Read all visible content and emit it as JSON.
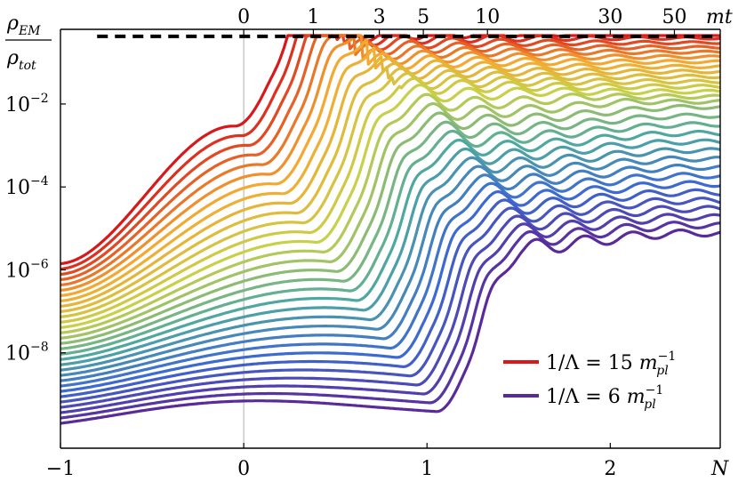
{
  "chart_data": {
    "type": "line",
    "title": "",
    "ylabel_num": "ρ",
    "ylabel_num_sub": "EM",
    "ylabel_den": "ρ",
    "ylabel_den_sub": "tot",
    "xlabel": "N",
    "top_axis_label": "mt",
    "x_range": [
      -1,
      2.6
    ],
    "y_log_range": [
      -10.3,
      -0.2
    ],
    "bottom_ticks": [
      {
        "value": -1,
        "label": "−1"
      },
      {
        "value": 0,
        "label": "0"
      },
      {
        "value": 1,
        "label": "1"
      },
      {
        "value": 2,
        "label": "2"
      }
    ],
    "top_ticks": [
      {
        "N": 0.0,
        "label": "0"
      },
      {
        "N": 0.38,
        "label": "1"
      },
      {
        "N": 0.74,
        "label": "3"
      },
      {
        "N": 0.98,
        "label": "5"
      },
      {
        "N": 1.33,
        "label": "10"
      },
      {
        "N": 2.0,
        "label": "30"
      },
      {
        "N": 2.35,
        "label": "50"
      }
    ],
    "y_ticks": [
      {
        "exp": -2,
        "label_base": "10",
        "label_exp": "−2"
      },
      {
        "exp": -4,
        "label_base": "10",
        "label_exp": "−4"
      },
      {
        "exp": -6,
        "label_base": "10",
        "label_exp": "−6"
      },
      {
        "exp": -8,
        "label_base": "10",
        "label_exp": "−8"
      }
    ],
    "reference_line": {
      "log_y": -0.37,
      "style": "dashed",
      "color": "#000000"
    },
    "vertical_marker": {
      "x": 0,
      "color": "#b0b0b0"
    },
    "curve_count": 31,
    "series_endpoints": {
      "start_log_y_at_N_minus_1": [
        -5.85,
        -9.7
      ],
      "end_log_y_at_N_2_6": [
        -0.36,
        -4.0
      ]
    },
    "color_scale": [
      "#d7191c",
      "#f4a830",
      "#c8d048",
      "#4fa8a0",
      "#3c6ad2",
      "#5b2a9a"
    ],
    "legend": {
      "position": "bottom-right",
      "entries": [
        {
          "color": "#d7191c",
          "text_main": "1/Λ = 15 ",
          "text_m": "m",
          "text_sub": "pl",
          "text_sup": "−1"
        },
        {
          "color": "#5b2a9a",
          "text_main": "1/Λ = 6 ",
          "text_m": "m",
          "text_sub": "pl",
          "text_sup": "−1"
        }
      ]
    }
  }
}
